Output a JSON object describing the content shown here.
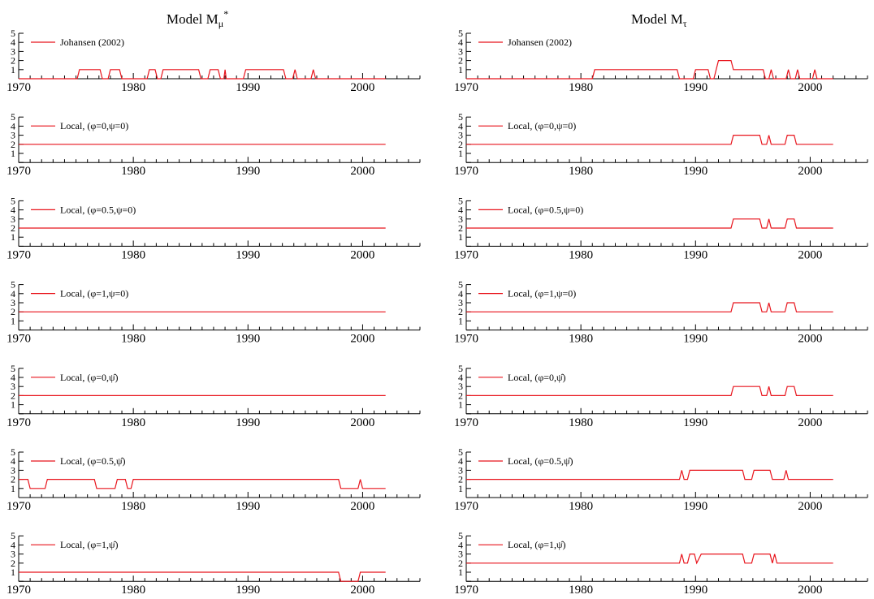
{
  "columns": [
    {
      "title_main": "Model M",
      "title_sub": "μ",
      "title_sup": "*"
    },
    {
      "title_main": "Model M",
      "title_sub": "τ",
      "title_sup": ""
    }
  ],
  "colors": {
    "series": "#e8141c",
    "axis": "#000000"
  },
  "chart_data": [
    {
      "type": "line",
      "column": 0,
      "row": 0,
      "xlim": [
        1970,
        2005
      ],
      "ylim": [
        0,
        5
      ],
      "x_ticks": [
        1970,
        1980,
        1990,
        2000
      ],
      "y_ticks": [
        1,
        2,
        3,
        4,
        5
      ],
      "legend": "top-left",
      "series": [
        {
          "name": "Johansen (2002)",
          "points": [
            [
              1970,
              0
            ],
            [
              1975.1,
              0
            ],
            [
              1975.3,
              1
            ],
            [
              1977.1,
              1
            ],
            [
              1977.3,
              0
            ],
            [
              1977.8,
              0
            ],
            [
              1978.0,
              1
            ],
            [
              1978.8,
              1
            ],
            [
              1979.0,
              0
            ],
            [
              1981.2,
              0
            ],
            [
              1981.4,
              1
            ],
            [
              1981.9,
              1
            ],
            [
              1982.1,
              0
            ],
            [
              1982.4,
              0
            ],
            [
              1982.6,
              1
            ],
            [
              1985.7,
              1
            ],
            [
              1985.9,
              0
            ],
            [
              1986.5,
              0
            ],
            [
              1986.7,
              1
            ],
            [
              1987.4,
              1
            ],
            [
              1987.6,
              0
            ],
            [
              1987.9,
              0
            ],
            [
              1988.0,
              1
            ],
            [
              1988.1,
              0
            ],
            [
              1989.6,
              0
            ],
            [
              1989.8,
              1
            ],
            [
              1993.1,
              1
            ],
            [
              1993.3,
              0
            ],
            [
              1993.9,
              0
            ],
            [
              1994.1,
              1
            ],
            [
              1994.3,
              0
            ],
            [
              1995.5,
              0
            ],
            [
              1995.7,
              1
            ],
            [
              1995.9,
              0
            ],
            [
              2002,
              0
            ]
          ]
        }
      ]
    },
    {
      "type": "line",
      "column": 1,
      "row": 0,
      "xlim": [
        1970,
        2005
      ],
      "ylim": [
        0,
        5
      ],
      "x_ticks": [
        1970,
        1980,
        1990,
        2000
      ],
      "y_ticks": [
        1,
        2,
        3,
        4,
        5
      ],
      "legend": "top-left",
      "series": [
        {
          "name": "Johansen (2002)",
          "points": [
            [
              1970,
              0
            ],
            [
              1981.0,
              0
            ],
            [
              1981.2,
              1
            ],
            [
              1988.4,
              1
            ],
            [
              1988.6,
              0
            ],
            [
              1989.8,
              0
            ],
            [
              1990.0,
              1
            ],
            [
              1991.1,
              1
            ],
            [
              1991.3,
              0
            ],
            [
              1991.6,
              0
            ],
            [
              1991.8,
              1
            ],
            [
              1992.0,
              2
            ],
            [
              1993.1,
              2
            ],
            [
              1993.3,
              1
            ],
            [
              1995.9,
              1
            ],
            [
              1996.1,
              0
            ],
            [
              1996.4,
              0
            ],
            [
              1996.6,
              1
            ],
            [
              1996.8,
              0
            ],
            [
              1997.9,
              0
            ],
            [
              1998.1,
              1
            ],
            [
              1998.3,
              0
            ],
            [
              1998.7,
              0
            ],
            [
              1998.9,
              1
            ],
            [
              1999.1,
              0
            ],
            [
              2000.2,
              0
            ],
            [
              2000.4,
              1
            ],
            [
              2000.6,
              0
            ],
            [
              2002,
              0
            ]
          ]
        }
      ]
    },
    {
      "type": "line",
      "column": 0,
      "row": 1,
      "xlim": [
        1970,
        2005
      ],
      "ylim": [
        0,
        5
      ],
      "x_ticks": [
        1970,
        1980,
        1990,
        2000
      ],
      "y_ticks": [
        1,
        2,
        3,
        4,
        5
      ],
      "legend": "top-left",
      "series": [
        {
          "name": "Local, (φ=0,ψ=0)",
          "points": [
            [
              1970,
              2
            ],
            [
              2002,
              2
            ]
          ]
        }
      ]
    },
    {
      "type": "line",
      "column": 1,
      "row": 1,
      "xlim": [
        1970,
        2005
      ],
      "ylim": [
        0,
        5
      ],
      "x_ticks": [
        1970,
        1980,
        1990,
        2000
      ],
      "y_ticks": [
        1,
        2,
        3,
        4,
        5
      ],
      "legend": "top-left",
      "series": [
        {
          "name": "Local, (φ=0,ψ=0)",
          "points": [
            [
              1970,
              2
            ],
            [
              1993.1,
              2
            ],
            [
              1993.3,
              3
            ],
            [
              1995.6,
              3
            ],
            [
              1995.8,
              2
            ],
            [
              1996.2,
              2
            ],
            [
              1996.4,
              3
            ],
            [
              1996.6,
              2
            ],
            [
              1997.8,
              2
            ],
            [
              1998.0,
              3
            ],
            [
              1998.6,
              3
            ],
            [
              1998.8,
              2
            ],
            [
              2002,
              2
            ]
          ]
        }
      ]
    },
    {
      "type": "line",
      "column": 0,
      "row": 2,
      "xlim": [
        1970,
        2005
      ],
      "ylim": [
        0,
        5
      ],
      "x_ticks": [
        1970,
        1980,
        1990,
        2000
      ],
      "y_ticks": [
        1,
        2,
        3,
        4,
        5
      ],
      "legend": "top-left",
      "series": [
        {
          "name": "Local, (φ=0.5,ψ=0)",
          "points": [
            [
              1970,
              2
            ],
            [
              2002,
              2
            ]
          ]
        }
      ]
    },
    {
      "type": "line",
      "column": 1,
      "row": 2,
      "xlim": [
        1970,
        2005
      ],
      "ylim": [
        0,
        5
      ],
      "x_ticks": [
        1970,
        1980,
        1990,
        2000
      ],
      "y_ticks": [
        1,
        2,
        3,
        4,
        5
      ],
      "legend": "top-left",
      "series": [
        {
          "name": "Local, (φ=0.5,ψ=0)",
          "points": [
            [
              1970,
              2
            ],
            [
              1993.1,
              2
            ],
            [
              1993.3,
              3
            ],
            [
              1995.6,
              3
            ],
            [
              1995.8,
              2
            ],
            [
              1996.2,
              2
            ],
            [
              1996.4,
              3
            ],
            [
              1996.6,
              2
            ],
            [
              1997.8,
              2
            ],
            [
              1998.0,
              3
            ],
            [
              1998.6,
              3
            ],
            [
              1998.8,
              2
            ],
            [
              2002,
              2
            ]
          ]
        }
      ]
    },
    {
      "type": "line",
      "column": 0,
      "row": 3,
      "xlim": [
        1970,
        2005
      ],
      "ylim": [
        0,
        5
      ],
      "x_ticks": [
        1970,
        1980,
        1990,
        2000
      ],
      "y_ticks": [
        1,
        2,
        3,
        4,
        5
      ],
      "legend": "top-left",
      "series": [
        {
          "name": "Local, (φ=1,ψ=0)",
          "points": [
            [
              1970,
              2
            ],
            [
              2002,
              2
            ]
          ]
        }
      ]
    },
    {
      "type": "line",
      "column": 1,
      "row": 3,
      "xlim": [
        1970,
        2005
      ],
      "ylim": [
        0,
        5
      ],
      "x_ticks": [
        1970,
        1980,
        1990,
        2000
      ],
      "y_ticks": [
        1,
        2,
        3,
        4,
        5
      ],
      "legend": "top-left",
      "series": [
        {
          "name": "Local, (φ=1,ψ=0)",
          "points": [
            [
              1970,
              2
            ],
            [
              1993.1,
              2
            ],
            [
              1993.3,
              3
            ],
            [
              1995.6,
              3
            ],
            [
              1995.8,
              2
            ],
            [
              1996.2,
              2
            ],
            [
              1996.4,
              3
            ],
            [
              1996.6,
              2
            ],
            [
              1997.8,
              2
            ],
            [
              1998.0,
              3
            ],
            [
              1998.6,
              3
            ],
            [
              1998.8,
              2
            ],
            [
              2002,
              2
            ]
          ]
        }
      ]
    },
    {
      "type": "line",
      "column": 0,
      "row": 4,
      "xlim": [
        1970,
        2005
      ],
      "ylim": [
        0,
        5
      ],
      "x_ticks": [
        1970,
        1980,
        1990,
        2000
      ],
      "y_ticks": [
        1,
        2,
        3,
        4,
        5
      ],
      "legend": "top-left",
      "series": [
        {
          "name": "Local, (φ=0,ψ̂)",
          "points": [
            [
              1970,
              2
            ],
            [
              2002,
              2
            ]
          ]
        }
      ]
    },
    {
      "type": "line",
      "column": 1,
      "row": 4,
      "xlim": [
        1970,
        2005
      ],
      "ylim": [
        0,
        5
      ],
      "x_ticks": [
        1970,
        1980,
        1990,
        2000
      ],
      "y_ticks": [
        1,
        2,
        3,
        4,
        5
      ],
      "legend": "top-left",
      "series": [
        {
          "name": "Local, (φ=0,ψ̂)",
          "points": [
            [
              1970,
              2
            ],
            [
              1993.1,
              2
            ],
            [
              1993.3,
              3
            ],
            [
              1995.6,
              3
            ],
            [
              1995.8,
              2
            ],
            [
              1996.2,
              2
            ],
            [
              1996.4,
              3
            ],
            [
              1996.6,
              2
            ],
            [
              1997.8,
              2
            ],
            [
              1998.0,
              3
            ],
            [
              1998.6,
              3
            ],
            [
              1998.8,
              2
            ],
            [
              2002,
              2
            ]
          ]
        }
      ]
    },
    {
      "type": "line",
      "column": 0,
      "row": 5,
      "xlim": [
        1970,
        2005
      ],
      "ylim": [
        0,
        5
      ],
      "x_ticks": [
        1970,
        1980,
        1990,
        2000
      ],
      "y_ticks": [
        1,
        2,
        3,
        4,
        5
      ],
      "legend": "top-left",
      "series": [
        {
          "name": "Local, (φ=0.5,ψ̂)",
          "points": [
            [
              1970,
              2
            ],
            [
              1970.8,
              2
            ],
            [
              1971.0,
              1
            ],
            [
              1972.3,
              1
            ],
            [
              1972.5,
              2
            ],
            [
              1976.6,
              2
            ],
            [
              1976.8,
              1
            ],
            [
              1978.4,
              1
            ],
            [
              1978.6,
              2
            ],
            [
              1979.3,
              2
            ],
            [
              1979.5,
              1
            ],
            [
              1979.8,
              1
            ],
            [
              1980.0,
              2
            ],
            [
              1997.9,
              2
            ],
            [
              1998.1,
              1
            ],
            [
              1999.6,
              1
            ],
            [
              1999.8,
              2
            ],
            [
              2000.0,
              1
            ],
            [
              2002,
              1
            ]
          ]
        }
      ]
    },
    {
      "type": "line",
      "column": 1,
      "row": 5,
      "xlim": [
        1970,
        2005
      ],
      "ylim": [
        0,
        5
      ],
      "x_ticks": [
        1970,
        1980,
        1990,
        2000
      ],
      "y_ticks": [
        1,
        2,
        3,
        4,
        5
      ],
      "legend": "top-left",
      "series": [
        {
          "name": "Local, (φ=0.5,ψ̂)",
          "points": [
            [
              1970,
              2
            ],
            [
              1988.6,
              2
            ],
            [
              1988.8,
              3
            ],
            [
              1989.0,
              2
            ],
            [
              1989.3,
              2
            ],
            [
              1989.5,
              3
            ],
            [
              1994.1,
              3
            ],
            [
              1994.3,
              2
            ],
            [
              1994.9,
              2
            ],
            [
              1995.1,
              3
            ],
            [
              1996.5,
              3
            ],
            [
              1996.7,
              2
            ],
            [
              1997.7,
              2
            ],
            [
              1997.9,
              3
            ],
            [
              1998.1,
              2
            ],
            [
              2002,
              2
            ]
          ]
        }
      ]
    },
    {
      "type": "line",
      "column": 0,
      "row": 6,
      "xlim": [
        1970,
        2005
      ],
      "ylim": [
        0,
        5
      ],
      "x_ticks": [
        1970,
        1980,
        1990,
        2000
      ],
      "y_ticks": [
        1,
        2,
        3,
        4,
        5
      ],
      "legend": "top-left",
      "series": [
        {
          "name": "Local, (φ=1,ψ̂)",
          "points": [
            [
              1970,
              1
            ],
            [
              1997.9,
              1
            ],
            [
              1998.1,
              0
            ],
            [
              1999.6,
              0
            ],
            [
              1999.8,
              1
            ],
            [
              2002,
              1
            ]
          ]
        }
      ]
    },
    {
      "type": "line",
      "column": 1,
      "row": 6,
      "xlim": [
        1970,
        2005
      ],
      "ylim": [
        0,
        5
      ],
      "x_ticks": [
        1970,
        1980,
        1990,
        2000
      ],
      "y_ticks": [
        1,
        2,
        3,
        4,
        5
      ],
      "legend": "top-left",
      "series": [
        {
          "name": "Local, (φ=1,ψ̂)",
          "points": [
            [
              1970,
              2
            ],
            [
              1988.6,
              2
            ],
            [
              1988.8,
              3
            ],
            [
              1989.0,
              2
            ],
            [
              1989.3,
              2
            ],
            [
              1989.5,
              3
            ],
            [
              1989.9,
              3
            ],
            [
              1990.1,
              2
            ],
            [
              1990.5,
              3
            ],
            [
              1994.1,
              3
            ],
            [
              1994.3,
              2
            ],
            [
              1994.9,
              2
            ],
            [
              1995.1,
              3
            ],
            [
              1996.5,
              3
            ],
            [
              1996.7,
              2
            ],
            [
              1996.9,
              3
            ],
            [
              1997.1,
              2
            ],
            [
              2002,
              2
            ]
          ]
        }
      ]
    }
  ]
}
